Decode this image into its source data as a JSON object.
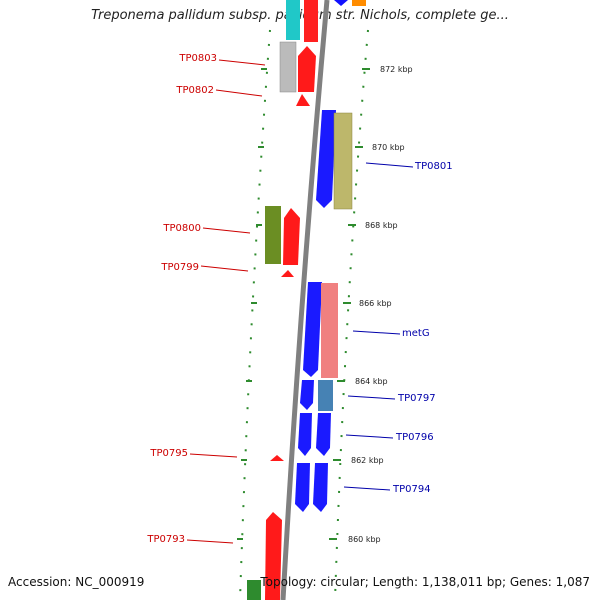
{
  "header": {
    "title": "Treponema pallidum subsp. pallidum str. Nichols, complete ge..."
  },
  "footer": {
    "accession": "Accession: NC_000919",
    "info": "Topology: circular; Length: 1,138,011 bp; Genes: 1,087"
  },
  "scale_labels": [
    "872 kbp",
    "870 kbp",
    "868 kbp",
    "866 kbp",
    "864 kbp",
    "862 kbp",
    "860 kbp"
  ],
  "gene_labels": {
    "left": [
      "TP0803",
      "TP0802",
      "TP0800",
      "TP0799",
      "TP0795",
      "TP0793"
    ],
    "right": [
      "TP0801",
      "metG",
      "TP0797",
      "TP0796",
      "TP0794"
    ]
  },
  "colors": {
    "left_label": "#cc0000",
    "right_label": "#0000aa",
    "backbone": "#808080",
    "tick": "#2e8b2e"
  }
}
